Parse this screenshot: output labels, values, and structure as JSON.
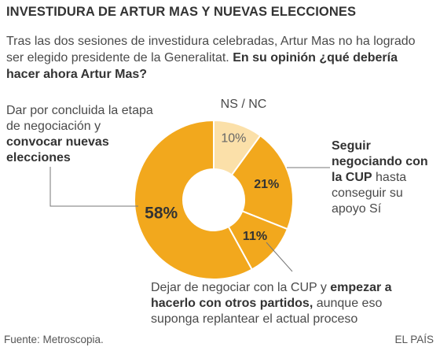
{
  "title": "INVESTIDURA DE ARTUR MAS Y NUEVAS ELECCIONES",
  "subtitle": {
    "text": "Tras las dos sesiones de investidura celebradas, Artur Mas no ha logrado ser elegido presidente de la Generalitat.",
    "question": "En su opinión ¿qué debería hacer ahora Artur Mas?"
  },
  "labels": {
    "elecciones": {
      "pre": "Dar por concluida la etapa de negociación y ",
      "bold": "convocar nuevas elecciones",
      "post": ""
    },
    "cup": {
      "pre": "",
      "bold": "Seguir negociando con la CUP",
      "post": " hasta conseguir su apoyo Sí"
    },
    "otros": {
      "pre": "Dejar de negociar con la CUP y ",
      "bold": "empezar a hacerlo con otros partidos,",
      "post": " aunque eso suponga replantear el actual proceso"
    },
    "nsnc": "NS / NC"
  },
  "footer": {
    "source": "Fuente: Metroscopia.",
    "brand": "EL PAÍS"
  },
  "colors": {
    "main": "#f2a81d",
    "light": "#fbe0a9",
    "stroke": "#ffffff",
    "leader": "#777777"
  },
  "chart_data": {
    "type": "pie",
    "donut": true,
    "start": "12 o'clock, clockwise",
    "slices": [
      {
        "label": "NS / NC",
        "value": 10,
        "display": "10%"
      },
      {
        "label": "Seguir negociando con la CUP",
        "value": 21,
        "display": "21%"
      },
      {
        "label": "Empezar a hacerlo con otros partidos",
        "value": 11,
        "display": "11%"
      },
      {
        "label": "Convocar nuevas elecciones",
        "value": 58,
        "display": "58%"
      }
    ]
  }
}
